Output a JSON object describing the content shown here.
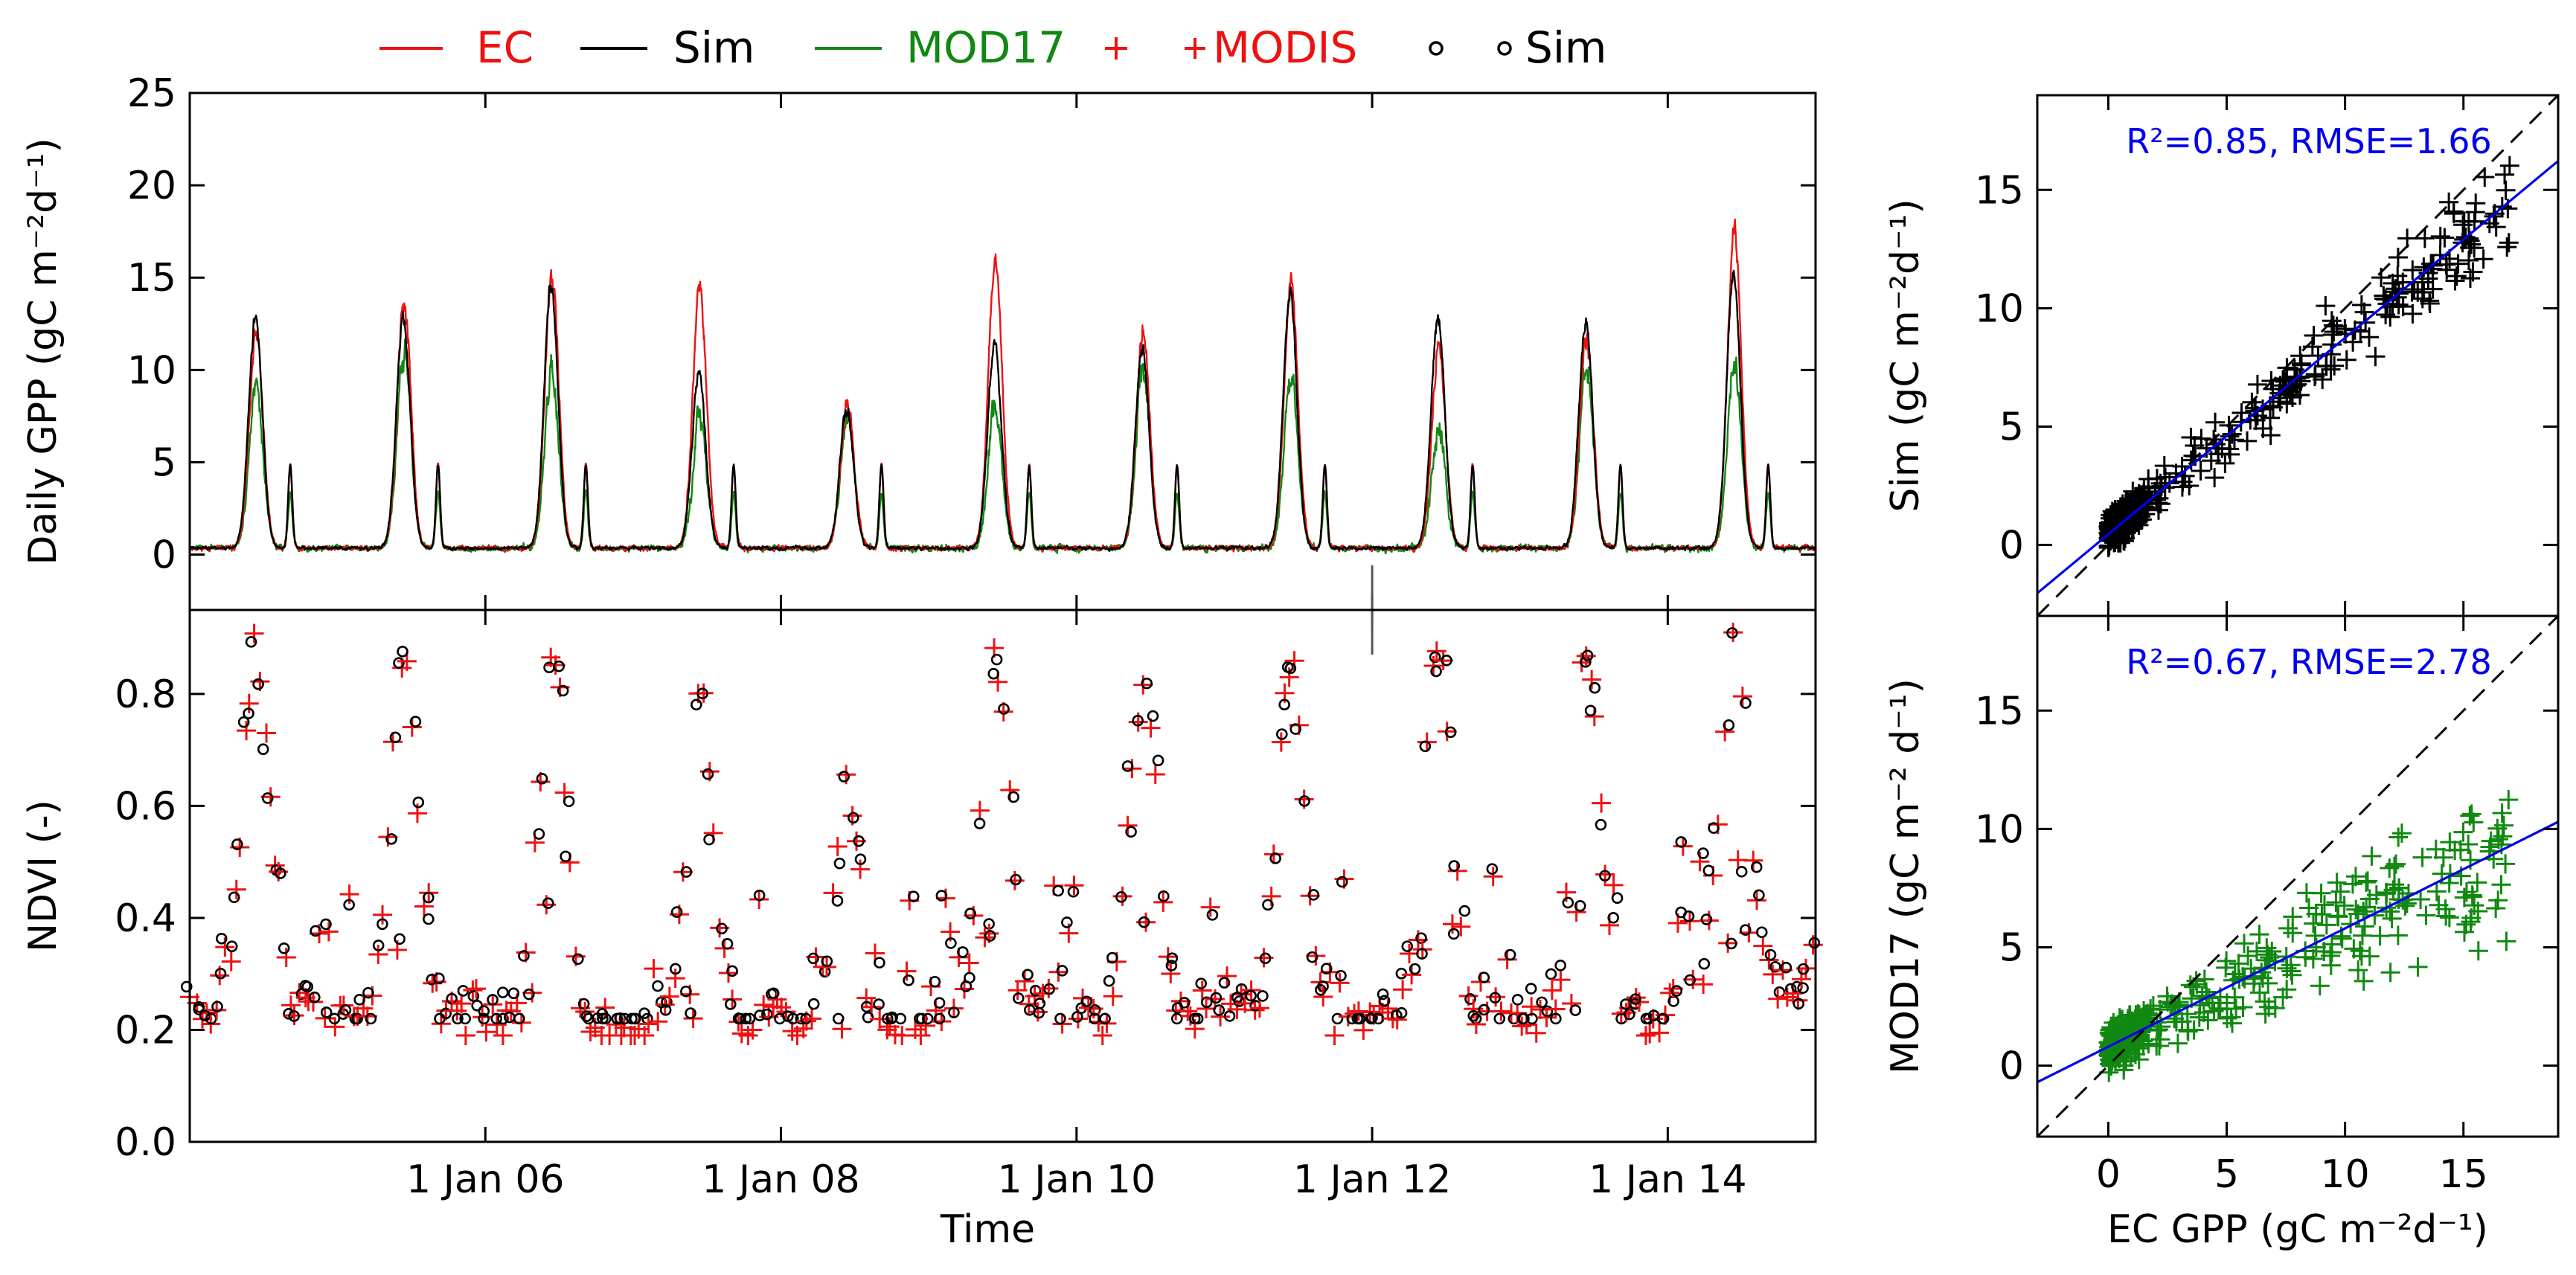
{
  "colors": {
    "ec": "#ee1111",
    "sim": "#000000",
    "mod17": "#118811",
    "fit": "#0000ee"
  },
  "legend": {
    "items": [
      {
        "label": "EC",
        "kind": "line",
        "color": "#ee1111"
      },
      {
        "label": "Sim",
        "kind": "line",
        "color": "#000000"
      },
      {
        "label": "MOD17",
        "kind": "line",
        "color": "#118811"
      },
      {
        "label": "MODIS",
        "kind": "plus",
        "color": "#ee1111"
      },
      {
        "label": "Sim",
        "kind": "circle",
        "color": "#000000"
      }
    ]
  },
  "chart_data": [
    {
      "id": "daily-gpp",
      "type": "line",
      "title": "",
      "xlabel": "",
      "ylabel": "Daily GPP (gC m⁻²d⁻¹)",
      "xlim": [
        2004.0,
        2015.0
      ],
      "ylim": [
        -3,
        25
      ],
      "yticks": [
        0,
        5,
        10,
        15,
        20,
        25
      ],
      "yticklabels": [
        "0",
        "5",
        "10",
        "15",
        "20",
        "25"
      ],
      "year_markers": [
        2006,
        2008,
        2010,
        2012,
        2014
      ],
      "annual_peaks": {
        "years": [
          2004,
          2005,
          2006,
          2007,
          2008,
          2009,
          2010,
          2011,
          2012,
          2013,
          2014
        ],
        "EC": [
          12.5,
          14.5,
          16.2,
          15.5,
          8.5,
          17,
          12.5,
          15.6,
          12,
          12.5,
          18.8
        ],
        "Sim": [
          13.5,
          13.6,
          15.5,
          10.3,
          8.3,
          12,
          11.5,
          15,
          13.6,
          13.3,
          16.2
        ],
        "MOD17": [
          9.5,
          11.5,
          10.5,
          7.5,
          7.8,
          8.2,
          10.5,
          10.3,
          7,
          10.8,
          11
        ]
      },
      "secondary_peak": {
        "EC": 4.5,
        "Sim": 4.5,
        "MOD17": 3
      }
    },
    {
      "id": "ndvi",
      "type": "scatter",
      "title": "",
      "xlabel": "Time",
      "ylabel": "NDVI (-)",
      "xlim": [
        2004.0,
        2015.0
      ],
      "ylim": [
        0.0,
        0.95
      ],
      "xticks": [
        2006,
        2008,
        2010,
        2012,
        2014
      ],
      "xticklabels": [
        "1 Jan 06",
        "1 Jan 08",
        "1 Jan 10",
        "1 Jan 12",
        "1 Jan 14"
      ],
      "yticks": [
        0.0,
        0.2,
        0.4,
        0.6,
        0.8
      ],
      "yticklabels": [
        "0.0",
        "0.2",
        "0.4",
        "0.6",
        "0.8"
      ],
      "series": [
        {
          "name": "MODIS",
          "marker": "plus",
          "color": "#ee1111"
        },
        {
          "name": "Sim",
          "marker": "circle",
          "color": "#000000"
        }
      ],
      "annual_max_ndvi": [
        0.87,
        0.85,
        0.88,
        0.8,
        0.64,
        0.87,
        0.81,
        0.86,
        0.88,
        0.87,
        0.9
      ],
      "annual_min_ndvi": [
        0.24,
        0.23,
        0.2,
        0.2,
        0.2,
        0.25,
        0.23,
        0.23,
        0.23,
        0.21,
        0.28
      ]
    },
    {
      "id": "sim-vs-ec",
      "type": "scatter",
      "xlabel": "",
      "ylabel": "Sim (gC m⁻²d⁻¹)",
      "xlim": [
        -3,
        19
      ],
      "ylim": [
        -3,
        19
      ],
      "xticks": [
        0,
        5,
        10,
        15
      ],
      "yticks": [
        0,
        5,
        10,
        15
      ],
      "yticklabels": [
        "0",
        "5",
        "10",
        "15"
      ],
      "annotation": "R²=0.85, RMSE=1.66",
      "fit": {
        "slope": 0.83,
        "intercept": 0.45
      },
      "one_to_one": true,
      "marker": "plus",
      "color": "#000000"
    },
    {
      "id": "mod17-vs-ec",
      "type": "scatter",
      "xlabel": "EC GPP (gC m⁻²d⁻¹)",
      "ylabel": "MOD17 (gC m⁻² d⁻¹)",
      "xlim": [
        -3,
        19
      ],
      "ylim": [
        -3,
        19
      ],
      "xticks": [
        0,
        5,
        10,
        15
      ],
      "xticklabels": [
        "0",
        "5",
        "10",
        "15"
      ],
      "yticks": [
        0,
        5,
        10,
        15
      ],
      "yticklabels": [
        "0",
        "5",
        "10",
        "15"
      ],
      "annotation": "R²=0.67, RMSE=2.78",
      "fit": {
        "slope": 0.5,
        "intercept": 0.8
      },
      "one_to_one": true,
      "marker": "plus",
      "color": "#118811"
    }
  ]
}
